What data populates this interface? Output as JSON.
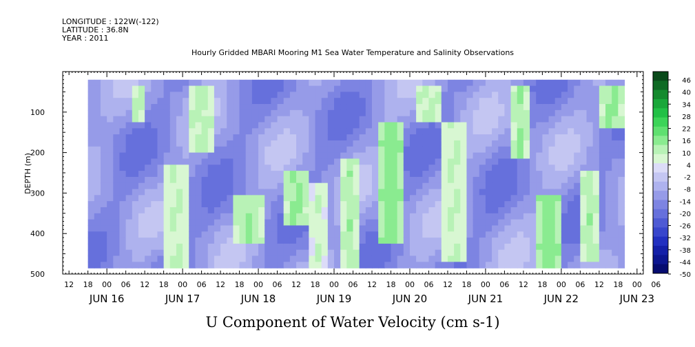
{
  "header": {
    "longitude": "LONGITUDE : 122W(-122)",
    "latitude": "LATITUDE : 36.8N",
    "year": "YEAR : 2011",
    "title": "Hourly Gridded MBARI Mooring M1 Sea Water Temperature and Salinity Observations"
  },
  "chart_data": {
    "type": "heatmap",
    "title": "U Component of Water Velocity (cm s-1)",
    "ylabel": "DEPTH (m)",
    "xlabel": "",
    "ylim": [
      500,
      0
    ],
    "y_reversed": true,
    "xlim_hours_from_jun16_00": [
      -14,
      170
    ],
    "data_x_range_hours_from_jun16_00": [
      -6,
      164
    ],
    "data_y_range_m": [
      20,
      485
    ],
    "y_ticks": [
      100,
      200,
      300,
      400,
      500
    ],
    "x_hour_ticks": [
      "12",
      "18",
      "00",
      "06",
      "12",
      "18",
      "00",
      "06",
      "12",
      "18",
      "00",
      "06",
      "12",
      "18",
      "00",
      "06",
      "12",
      "18",
      "00",
      "06",
      "12",
      "18",
      "00",
      "06",
      "12",
      "18",
      "00",
      "06",
      "12",
      "18",
      "00",
      "06"
    ],
    "x_day_ticks": [
      "JUN 16",
      "JUN 17",
      "JUN 18",
      "JUN 19",
      "JUN 20",
      "JUN 21",
      "JUN 22",
      "JUN 23"
    ],
    "colorbar": {
      "labels": [
        "46",
        "40",
        "34",
        "28",
        "22",
        "16",
        "10",
        "4",
        "-2",
        "-8",
        "-14",
        "-20",
        "-26",
        "-32",
        "-38",
        "-44",
        "-50"
      ],
      "range": [
        -50,
        50
      ],
      "colors": [
        "#0a4a1a",
        "#0f6a24",
        "#158a2e",
        "#1aa73a",
        "#22c046",
        "#3cd458",
        "#5fe070",
        "#8aeb90",
        "#b8f2b6",
        "#d8f7d2",
        "#dcdcf8",
        "#c4c6f2",
        "#aeb2ee",
        "#969be8",
        "#7d84e2",
        "#6670dc",
        "#4e5ad4",
        "#3846cc",
        "#2230c0",
        "#1420a8",
        "#0c1690",
        "#060c70"
      ]
    },
    "regions": [
      {
        "t0": 8,
        "t1": 12,
        "d0": 30,
        "d1": 130,
        "v": 12
      },
      {
        "t0": 18,
        "t1": 26,
        "d0": 230,
        "d1": 480,
        "v": 10
      },
      {
        "t0": 26,
        "t1": 34,
        "d0": 30,
        "d1": 200,
        "v": 12
      },
      {
        "t0": 40,
        "t1": 50,
        "d0": 300,
        "d1": 420,
        "v": 14
      },
      {
        "t0": 56,
        "t1": 64,
        "d0": 250,
        "d1": 380,
        "v": 16
      },
      {
        "t0": 64,
        "t1": 70,
        "d0": 280,
        "d1": 480,
        "v": 8
      },
      {
        "t0": 74,
        "t1": 80,
        "d0": 220,
        "d1": 480,
        "v": 12
      },
      {
        "t0": 86,
        "t1": 94,
        "d0": 120,
        "d1": 420,
        "v": 18
      },
      {
        "t0": 98,
        "t1": 106,
        "d0": 30,
        "d1": 120,
        "v": 12
      },
      {
        "t0": 106,
        "t1": 114,
        "d0": 130,
        "d1": 470,
        "v": 10
      },
      {
        "t0": 128,
        "t1": 134,
        "d0": 30,
        "d1": 220,
        "v": 14
      },
      {
        "t0": 136,
        "t1": 144,
        "d0": 300,
        "d1": 480,
        "v": 18
      },
      {
        "t0": 150,
        "t1": 156,
        "d0": 250,
        "d1": 470,
        "v": 12
      },
      {
        "t0": 156,
        "t1": 164,
        "d0": 30,
        "d1": 140,
        "v": 16
      }
    ]
  }
}
